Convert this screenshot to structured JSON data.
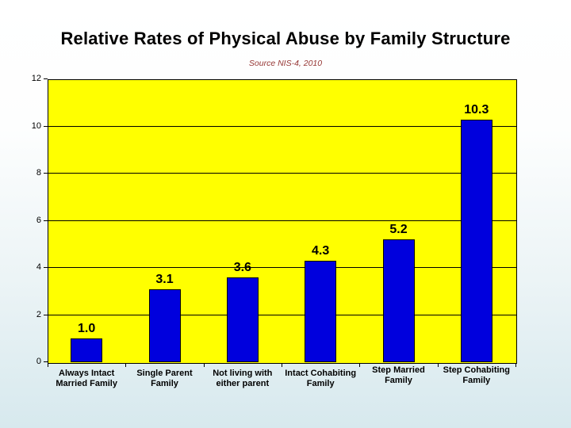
{
  "slide": {
    "title": "Relative Rates of Physical Abuse by Family Structure",
    "subtitle": "Source NIS-4, 2010"
  },
  "chart_data": {
    "type": "bar",
    "title": "Relative Rates of Physical Abuse by Family Structure",
    "subtitle": "Source NIS-4, 2010",
    "categories": [
      "Always Intact Married Family",
      "Single Parent Family",
      "Not living with either parent",
      "Intact Cohabiting Family",
      "Step Married Family",
      "Step Cohabiting Family"
    ],
    "category_lines": [
      [
        "Always Intact",
        "Married Family"
      ],
      [
        "Single Parent",
        "Family"
      ],
      [
        "Not living with",
        "either parent"
      ],
      [
        "Intact Cohabiting",
        "Family"
      ],
      [
        "Step Married",
        "Family"
      ],
      [
        "Step Cohabiting",
        "Family"
      ]
    ],
    "values": [
      1.0,
      3.1,
      3.6,
      4.3,
      5.2,
      10.3
    ],
    "value_labels": [
      "1.0",
      "3.1",
      "3.6",
      "4.3",
      "5.2",
      "10.3"
    ],
    "xlabel": "",
    "ylabel": "",
    "ylim": [
      0,
      12
    ],
    "yticks": [
      0,
      2,
      4,
      6,
      8,
      10,
      12
    ],
    "grid": true,
    "legend": false,
    "colors": {
      "bar": "#0000dd",
      "bar_border": "#000000",
      "plot_bg": "#ffff00",
      "plot_border": "#000000",
      "gridline": "#000000",
      "value_label": "#000000",
      "title": "#000000",
      "subtitle": "#963634",
      "background_top": "#ffffff",
      "background_bottom": "#d7e9ee"
    }
  }
}
